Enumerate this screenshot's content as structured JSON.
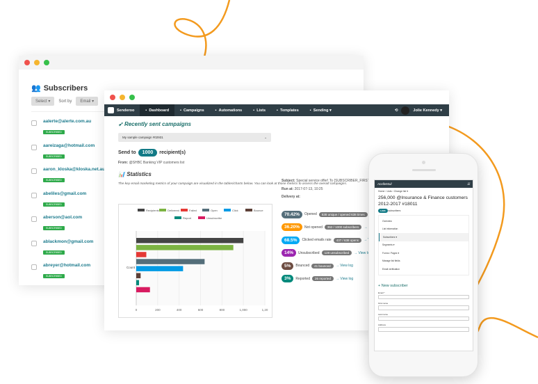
{
  "colors": {
    "accent": "#f39a1e",
    "teal": "#127a86",
    "nav": "#2f3e46",
    "subscribed": "#2eaa4a"
  },
  "subscribers_window": {
    "title": "Subscribers",
    "select": "Select",
    "sort_by": "Sort by",
    "sort_field": "Email",
    "rows": [
      {
        "email": "aalerte@alerte.com.au",
        "status": "SUBSCRIBED"
      },
      {
        "email": "aareizaga@hotmail.com",
        "status": "SUBSCRIBED"
      },
      {
        "email": "aaron_kloska@kloska.net.au",
        "status": "SUBSCRIBED"
      },
      {
        "email": "abeliles@gmail.com",
        "status": "SUBSCRIBED"
      },
      {
        "email": "aberson@aol.com",
        "status": "SUBSCRIBED"
      },
      {
        "email": "ablackmon@gmail.com",
        "status": "SUBSCRIBED"
      },
      {
        "email": "abreyer@hotmail.com",
        "status": "SUBSCRIBED"
      }
    ]
  },
  "main_window": {
    "brand": "Senderoo",
    "nav": [
      {
        "label": "Dashboard",
        "active": true
      },
      {
        "label": "Campaigns"
      },
      {
        "label": "Automations"
      },
      {
        "label": "Lists"
      },
      {
        "label": "Templates"
      },
      {
        "label": "Sending ▾"
      }
    ],
    "user": "Jolie Kennedy ▾",
    "heading": "Recently sent campaigns",
    "campaign_select": "My sample campaign #02931",
    "send_to": "Send to",
    "recipients": "1000",
    "recipients_suffix": "recipient(s)",
    "from_label": "From:",
    "from_value": "@SHBC Banking VIP customers list",
    "subject_label": "Subject:",
    "subject_value": "Special service offer! To {SUBSCRIBER_FIRST_NAME}",
    "run_label": "Run at:",
    "run_value": "2017-07-13, 10:25",
    "delivery_label": "Delivery at:",
    "stats_heading": "Statistics",
    "stats_desc": "The key email marketing metrics of your campaign are visualized in the tables/charts below. You can look at those metrics to assess the overall campaigns.",
    "stats": [
      {
        "pct": "70.42%",
        "label": "Opened",
        "detail": "638 unique / opened 638 times",
        "color": "#546e7a"
      },
      {
        "pct": "36.20%",
        "label": "Not opened",
        "detail": "362 / 1000 subscribers",
        "color": "#ff9800",
        "link": "→"
      },
      {
        "pct": "68.5%",
        "label": "Clicked emails rate",
        "detail": "437 / 638 opens",
        "color": "#03a9f4",
        "link": "→ V"
      },
      {
        "pct": "14%",
        "label": "Unsubscribed",
        "detail": "128 unsubscribed",
        "color": "#9c27b0",
        "link": "→ View lo"
      },
      {
        "pct": "5%",
        "label": "Bounced",
        "detail": "41 bounced",
        "color": "#6d4c41",
        "link": "→ View log"
      },
      {
        "pct": "3%",
        "label": "Reported",
        "detail": "26 reported",
        "color": "#00897b",
        "link": "→ View log"
      }
    ]
  },
  "chart_data": {
    "type": "bar",
    "orientation": "horizontal",
    "ylabel": "Count",
    "xlim": [
      0,
      1200
    ],
    "xticks": [
      "0",
      "200",
      "400",
      "600",
      "800",
      "1,000",
      "1,20"
    ],
    "grid": true,
    "legend": "top",
    "series": [
      {
        "name": "Recipients",
        "value": 1000,
        "color": "#444444"
      },
      {
        "name": "Delivered",
        "value": 906,
        "color": "#7cb342"
      },
      {
        "name": "Failed",
        "value": 94,
        "color": "#e53935"
      },
      {
        "name": "Open",
        "value": 638,
        "color": "#546e7a"
      },
      {
        "name": "Click",
        "value": 437,
        "color": "#039be5"
      },
      {
        "name": "Bounce",
        "value": 41,
        "color": "#5d4037"
      },
      {
        "name": "Report",
        "value": 26,
        "color": "#00897b"
      },
      {
        "name": "Unsubscribe",
        "value": 128,
        "color": "#d81b60"
      }
    ]
  },
  "phone": {
    "brand": "AcelleMail",
    "breadcrumb": "Home › Lists › Change list ▾",
    "title": "256,000 @Insurance & Finance customers 2012-2017 #18011",
    "count": "1,565",
    "count_label": "subscribers",
    "menu": [
      "Overview",
      "List information",
      "Subscribers ▾",
      "Segments ▾",
      "Forms / Pages ▾",
      "Manage list fields",
      "Email verification"
    ],
    "new_subscriber": "+ New subscriber",
    "fields": [
      "Email *",
      "First name",
      "Last name",
      "Address"
    ]
  }
}
